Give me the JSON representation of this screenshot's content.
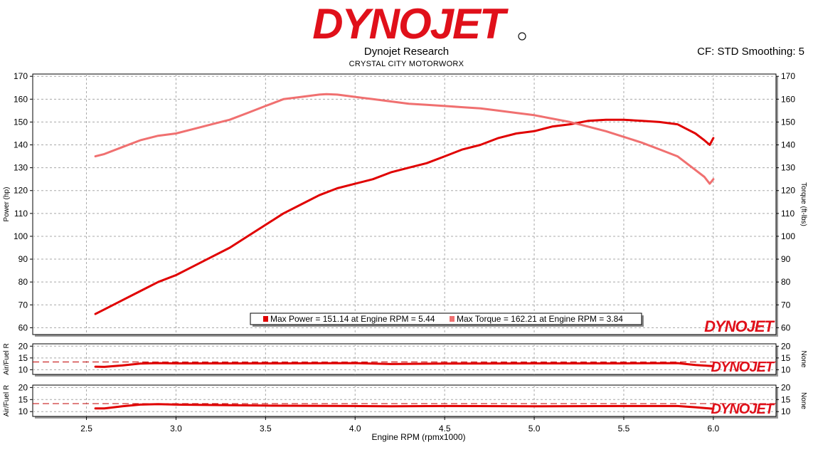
{
  "header": {
    "logo_text": "DYNOJET",
    "title": "Dynojet Research",
    "subtitle": "CRYSTAL CITY MOTORWORX",
    "cf_label": "CF: STD Smoothing: 5"
  },
  "colors": {
    "power": "#e00000",
    "torque": "#f07070",
    "afr": "#e00000",
    "afr_ref": "#c00000",
    "grid": "#a8a8a8",
    "logo_red": "#e0101a",
    "logo_black": "#111111"
  },
  "chart_data": [
    {
      "type": "line",
      "name": "main-power-torque",
      "xlabel": "Engine RPM (rpmx1000)",
      "ylabel": "Power (hp)",
      "y2label": "Torque (ft-lbs)",
      "xlim": [
        2.2,
        6.35
      ],
      "ylim": [
        57,
        171
      ],
      "xticks": [
        "2.5",
        "3.0",
        "3.5",
        "4.0",
        "4.5",
        "5.0",
        "5.5",
        "6.0"
      ],
      "yticks": [
        "60",
        "70",
        "80",
        "90",
        "100",
        "110",
        "120",
        "130",
        "140",
        "150",
        "160",
        "170"
      ],
      "grid": true,
      "legend": [
        {
          "label": "Max Power = 151.14 at Engine RPM = 5.44",
          "series": "power"
        },
        {
          "label": "Max Torque = 162.21 at Engine RPM = 3.84",
          "series": "torque"
        }
      ],
      "watermark": "DYNOJET",
      "series": [
        {
          "key": "power",
          "x": [
            2.55,
            2.6,
            2.7,
            2.8,
            2.9,
            3.0,
            3.1,
            3.2,
            3.3,
            3.4,
            3.5,
            3.6,
            3.7,
            3.8,
            3.9,
            4.0,
            4.1,
            4.2,
            4.3,
            4.4,
            4.5,
            4.6,
            4.7,
            4.8,
            4.9,
            5.0,
            5.1,
            5.2,
            5.3,
            5.4,
            5.5,
            5.6,
            5.7,
            5.8,
            5.85,
            5.9,
            5.95,
            5.98,
            6.0
          ],
          "values": [
            66,
            68,
            72,
            76,
            80,
            83,
            87,
            91,
            95,
            100,
            105,
            110,
            114,
            118,
            121,
            123,
            125,
            128,
            130,
            132,
            135,
            138,
            140,
            143,
            145,
            146,
            148,
            149,
            150.5,
            151,
            151,
            150.5,
            150,
            149,
            147,
            145,
            142,
            140,
            143
          ]
        },
        {
          "key": "torque",
          "x": [
            2.55,
            2.6,
            2.7,
            2.8,
            2.9,
            3.0,
            3.1,
            3.2,
            3.3,
            3.4,
            3.5,
            3.6,
            3.7,
            3.8,
            3.84,
            3.9,
            4.0,
            4.1,
            4.2,
            4.3,
            4.4,
            4.5,
            4.6,
            4.7,
            4.8,
            4.9,
            5.0,
            5.1,
            5.2,
            5.3,
            5.4,
            5.5,
            5.6,
            5.7,
            5.8,
            5.85,
            5.9,
            5.95,
            5.98,
            6.0
          ],
          "values": [
            135,
            136,
            139,
            142,
            144,
            145,
            147,
            149,
            151,
            154,
            157,
            160,
            161,
            162,
            162.2,
            162,
            161,
            160,
            159,
            158,
            157.5,
            157,
            156.5,
            156,
            155,
            154,
            153,
            151.5,
            150,
            148,
            146,
            143.5,
            141,
            138,
            135,
            132,
            129,
            126,
            123,
            125
          ]
        }
      ]
    },
    {
      "type": "line",
      "name": "afr-1",
      "ylabel": "Air/Fuel R",
      "y2label": "None",
      "xlim": [
        2.2,
        6.35
      ],
      "ylim": [
        8,
        21
      ],
      "yticks": [
        "10",
        "15",
        "20"
      ],
      "reference_line": 13.3,
      "grid": true,
      "watermark": "DYNOJET",
      "series": [
        {
          "key": "afr1",
          "x": [
            2.55,
            2.6,
            2.7,
            2.8,
            2.9,
            3.0,
            3.5,
            4.0,
            4.2,
            4.5,
            5.0,
            5.5,
            5.8,
            5.9,
            6.0
          ],
          "values": [
            11.3,
            11.2,
            11.8,
            12.6,
            12.8,
            12.7,
            12.7,
            12.8,
            12.4,
            12.6,
            12.7,
            12.7,
            12.8,
            12.0,
            11.5
          ]
        }
      ]
    },
    {
      "type": "line",
      "name": "afr-2",
      "ylabel": "Air/Fuel R",
      "y2label": "None",
      "xlim": [
        2.2,
        6.35
      ],
      "ylim": [
        8,
        21
      ],
      "yticks": [
        "10",
        "15",
        "20"
      ],
      "reference_line": 13.3,
      "grid": true,
      "watermark": "DYNOJET",
      "series": [
        {
          "key": "afr2",
          "x": [
            2.55,
            2.6,
            2.7,
            2.8,
            2.9,
            3.0,
            3.5,
            4.0,
            4.2,
            4.5,
            5.0,
            5.5,
            5.8,
            5.9,
            6.0
          ],
          "values": [
            11.3,
            11.3,
            12.2,
            12.9,
            13.1,
            12.9,
            12.5,
            12.3,
            12.2,
            12.3,
            12.2,
            12.3,
            12.3,
            11.8,
            11.2
          ]
        }
      ]
    }
  ]
}
